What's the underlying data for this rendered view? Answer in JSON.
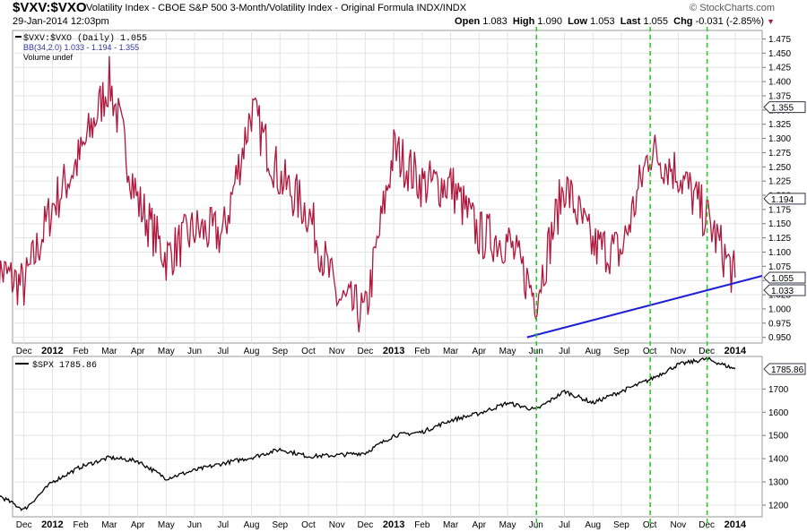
{
  "header": {
    "symbol": "$VXV:$VXO",
    "description": "Volatility Index - CBOE S&P 500 3-Month/Volatility Index - Original Formula INDX/INDX",
    "date": "29-Jan-2014 12:03pm",
    "watermark": "© StockCharts.com",
    "open_label": "Open",
    "open": "1.083",
    "high_label": "High",
    "high": "1.090",
    "low_label": "Low",
    "low": "1.053",
    "last_label": "Last",
    "last": "1.055",
    "chg_label": "Chg",
    "chg": "-0.031 (-2.85%)"
  },
  "colors": {
    "ratio_line": "#b0173d",
    "trend_line": "#1f1fd6",
    "marker_line": "#22cc22",
    "grid": "#e4e4e4",
    "spx_line": "#000000"
  },
  "chart_data": [
    {
      "type": "line",
      "legend": [
        "$VXV:$VXO (Daily) 1.055",
        "BB(34,2.0) 1.033 - 1.194 - 1.355",
        "Volume undef"
      ],
      "ylim": [
        0.94,
        1.49
      ],
      "yticks": [
        "1.475",
        "1.450",
        "1.425",
        "1.400",
        "1.375",
        "1.350",
        "1.325",
        "1.300",
        "1.275",
        "1.250",
        "1.225",
        "1.200",
        "1.175",
        "1.150",
        "1.125",
        "1.100",
        "1.075",
        "1.050",
        "1.025",
        "1.000",
        "0.975",
        "0.950"
      ],
      "x_tick_labels": [
        "Dec",
        "2012",
        "Feb",
        "Mar",
        "Apr",
        "May",
        "Jun",
        "Jul",
        "Aug",
        "Sep",
        "Oct",
        "Nov",
        "Dec",
        "2013",
        "Feb",
        "Mar",
        "Apr",
        "May",
        "Jun",
        "Jul",
        "Aug",
        "Sep",
        "Oct",
        "Nov",
        "Dec",
        "2014"
      ],
      "price_tags": [
        "1.355",
        "1.194",
        "1.055",
        "1.033"
      ],
      "series": [
        {
          "name": "$VXV:$VXO",
          "x": [
            "Nov-2011",
            "Dec-2011",
            "Jan-2012",
            "Feb-2012",
            "Mar-2012",
            "Apr-2012",
            "May-2012",
            "Jun-2012",
            "Jul-2012",
            "Aug-2012",
            "Sep-2012",
            "Oct-2012",
            "Nov-2012",
            "Dec-2012",
            "Jan-2013",
            "Feb-2013",
            "Mar-2013",
            "Apr-2013",
            "May-2013",
            "Jun-2013",
            "Jul-2013",
            "Aug-2013",
            "Sep-2013",
            "Oct-2013",
            "Nov-2013",
            "Dec-2013",
            "Jan-2014"
          ],
          "values": [
            1.07,
            1.04,
            1.18,
            1.27,
            1.4,
            1.19,
            1.09,
            1.14,
            1.13,
            1.35,
            1.23,
            1.17,
            1.02,
            0.99,
            1.28,
            1.22,
            1.22,
            1.13,
            1.12,
            1.02,
            1.22,
            1.11,
            1.1,
            1.28,
            1.24,
            1.16,
            1.055
          ]
        }
      ],
      "trendline": {
        "from": [
          "Jun-2013",
          0.95
        ],
        "to": [
          "Jan-2014",
          1.055
        ]
      },
      "markers": [
        "Jun-2013",
        "Oct-2013",
        "Dec-2013"
      ]
    },
    {
      "type": "line",
      "legend": [
        "$SPX 1785.86"
      ],
      "ylim": [
        1150,
        1840
      ],
      "yticks": [
        "1700",
        "1600",
        "1500",
        "1400",
        "1300",
        "1200"
      ],
      "x_tick_labels": [
        "Dec",
        "2012",
        "Feb",
        "Mar",
        "Apr",
        "May",
        "Jun",
        "Jul",
        "Aug",
        "Sep",
        "Oct",
        "Nov",
        "Dec",
        "2013",
        "Feb",
        "Mar",
        "Apr",
        "May",
        "Jun",
        "Jul",
        "Aug",
        "Sep",
        "Oct",
        "Nov",
        "Dec",
        "2014"
      ],
      "price_tags": [
        "1785.86"
      ],
      "series": [
        {
          "name": "$SPX",
          "x": [
            "Nov-2011",
            "Dec-2011",
            "Jan-2012",
            "Feb-2012",
            "Mar-2012",
            "Apr-2012",
            "May-2012",
            "Jun-2012",
            "Jul-2012",
            "Aug-2012",
            "Sep-2012",
            "Oct-2012",
            "Nov-2012",
            "Dec-2012",
            "Jan-2013",
            "Feb-2013",
            "Mar-2013",
            "Apr-2013",
            "May-2013",
            "Jun-2013",
            "Jul-2013",
            "Aug-2013",
            "Sep-2013",
            "Oct-2013",
            "Nov-2013",
            "Dec-2013",
            "Jan-2014"
          ],
          "values": [
            1250,
            1180,
            1300,
            1365,
            1405,
            1390,
            1315,
            1350,
            1380,
            1405,
            1440,
            1410,
            1415,
            1425,
            1500,
            1515,
            1565,
            1595,
            1640,
            1610,
            1690,
            1640,
            1690,
            1740,
            1805,
            1830,
            1785.86
          ]
        }
      ]
    }
  ]
}
